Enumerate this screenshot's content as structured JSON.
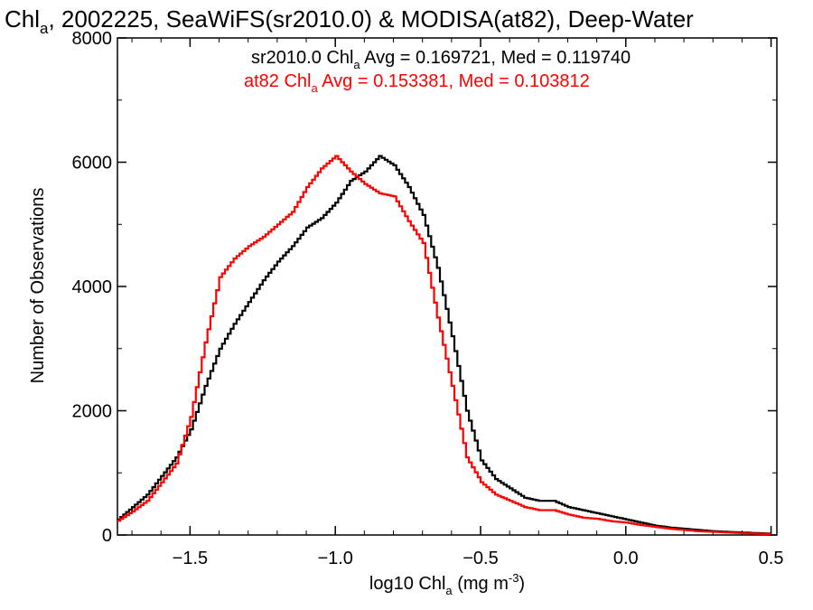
{
  "chart_data": {
    "type": "line",
    "title": {
      "pre": "Chl",
      "sub": "a",
      "post": ", 2002225, SeaWiFS(sr2010.0) & MODISA(at82), Deep-Water"
    },
    "xlabel": {
      "pre": "log10 Chl",
      "sub": "a",
      "mid": " (mg m",
      "sup": "-3",
      "post": ")"
    },
    "ylabel": "Number of Observations",
    "xlim": [
      -1.75,
      0.52
    ],
    "ylim": [
      0,
      8000
    ],
    "x_ticks": [
      -1.5,
      -1.0,
      -0.5,
      0.0,
      0.5
    ],
    "x_tick_labels": [
      "−1.5",
      "−1.0",
      "−0.5",
      "0.0",
      "0.5"
    ],
    "y_ticks": [
      0,
      2000,
      4000,
      6000,
      8000
    ],
    "y_tick_labels": [
      "0",
      "2000",
      "4000",
      "6000",
      "8000"
    ],
    "grid": false,
    "annotations": [
      {
        "pre": "sr2010.0 Chl",
        "sub": "a",
        "post": " Avg = 0.169721, Med = 0.119740",
        "color": "#000000"
      },
      {
        "pre": "at82 Chl",
        "sub": "a",
        "post": " Avg = 0.153381, Med = 0.103812",
        "color": "#ff0000"
      }
    ],
    "series": [
      {
        "color": "#000000",
        "step": true,
        "x": [
          -1.75,
          -1.7,
          -1.65,
          -1.6,
          -1.55,
          -1.5,
          -1.45,
          -1.4,
          -1.35,
          -1.3,
          -1.25,
          -1.2,
          -1.15,
          -1.1,
          -1.05,
          -1.0,
          -0.95,
          -0.9,
          -0.85,
          -0.8,
          -0.75,
          -0.7,
          -0.65,
          -0.6,
          -0.55,
          -0.5,
          -0.45,
          -0.4,
          -0.35,
          -0.3,
          -0.25,
          -0.2,
          -0.15,
          -0.1,
          -0.05,
          0.0,
          0.05,
          0.1,
          0.15,
          0.2,
          0.25,
          0.3,
          0.35,
          0.4,
          0.45,
          0.5
        ],
        "y": [
          250,
          450,
          650,
          950,
          1250,
          1700,
          2400,
          3000,
          3400,
          3750,
          4100,
          4400,
          4650,
          4950,
          5100,
          5350,
          5700,
          5850,
          6100,
          5950,
          5600,
          5150,
          4300,
          3200,
          2000,
          1200,
          900,
          750,
          600,
          550,
          550,
          450,
          400,
          350,
          300,
          250,
          200,
          150,
          120,
          100,
          80,
          60,
          50,
          40,
          30,
          20
        ]
      },
      {
        "color": "#ff0000",
        "step": true,
        "x": [
          -1.75,
          -1.7,
          -1.65,
          -1.6,
          -1.55,
          -1.5,
          -1.45,
          -1.4,
          -1.35,
          -1.3,
          -1.25,
          -1.2,
          -1.15,
          -1.1,
          -1.05,
          -1.0,
          -0.95,
          -0.9,
          -0.85,
          -0.8,
          -0.75,
          -0.7,
          -0.65,
          -0.6,
          -0.55,
          -0.5,
          -0.45,
          -0.4,
          -0.35,
          -0.3,
          -0.25,
          -0.2,
          -0.15,
          -0.1,
          -0.05,
          0.0,
          0.05,
          0.1,
          0.15,
          0.2,
          0.25,
          0.3,
          0.35,
          0.4,
          0.45,
          0.5
        ],
        "y": [
          230,
          380,
          550,
          850,
          1150,
          1900,
          3100,
          4150,
          4450,
          4650,
          4800,
          5000,
          5200,
          5600,
          5900,
          6100,
          5850,
          5650,
          5500,
          5450,
          5050,
          4700,
          3500,
          2400,
          1250,
          850,
          650,
          550,
          450,
          400,
          400,
          330,
          280,
          260,
          220,
          200,
          160,
          130,
          100,
          80,
          60,
          50,
          40,
          30,
          20,
          15
        ]
      }
    ]
  }
}
